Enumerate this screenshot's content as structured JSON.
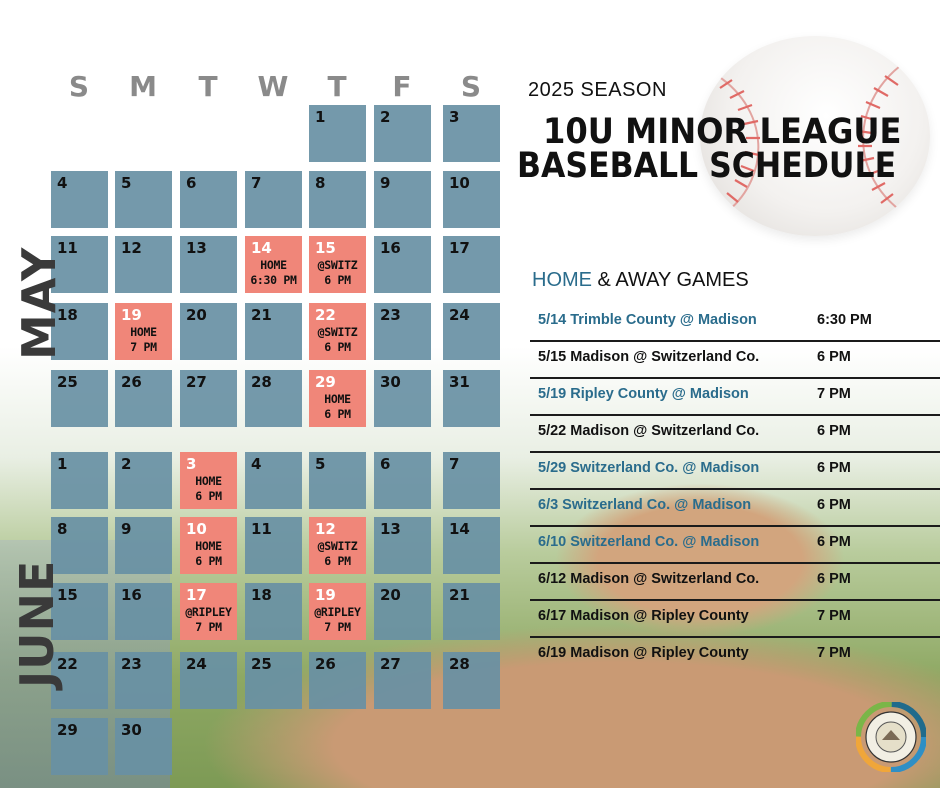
{
  "header": {
    "season": "2025 SEASON",
    "title_line1": "10U MINOR LEAGUE",
    "title_line2": "BASEBALL SCHEDULE"
  },
  "calendar": {
    "days_of_week": [
      "S",
      "M",
      "T",
      "W",
      "T",
      "F",
      "S"
    ],
    "may": {
      "label": "MAY",
      "weeks": [
        [
          null,
          null,
          null,
          null,
          {
            "d": "1"
          },
          {
            "d": "2"
          },
          {
            "d": "3"
          }
        ],
        [
          {
            "d": "4"
          },
          {
            "d": "5"
          },
          {
            "d": "6"
          },
          {
            "d": "7"
          },
          {
            "d": "8"
          },
          {
            "d": "9"
          },
          {
            "d": "10"
          }
        ],
        [
          {
            "d": "11"
          },
          {
            "d": "12"
          },
          {
            "d": "13"
          },
          {
            "d": "14",
            "game": [
              "HOME",
              "6:30 PM"
            ]
          },
          {
            "d": "15",
            "game": [
              "@SWITZ",
              "6 PM"
            ]
          },
          {
            "d": "16"
          },
          {
            "d": "17"
          }
        ],
        [
          {
            "d": "18"
          },
          {
            "d": "19",
            "game": [
              "HOME",
              "7 PM"
            ]
          },
          {
            "d": "20"
          },
          {
            "d": "21"
          },
          {
            "d": "22",
            "game": [
              "@SWITZ",
              "6 PM"
            ]
          },
          {
            "d": "23"
          },
          {
            "d": "24"
          }
        ],
        [
          {
            "d": "25"
          },
          {
            "d": "26"
          },
          {
            "d": "27"
          },
          {
            "d": "28"
          },
          {
            "d": "29",
            "game": [
              "HOME",
              "6 PM"
            ]
          },
          {
            "d": "30"
          },
          {
            "d": "31"
          }
        ]
      ]
    },
    "june": {
      "label": "JUNE",
      "weeks": [
        [
          {
            "d": "1"
          },
          {
            "d": "2"
          },
          {
            "d": "3",
            "game": [
              "HOME",
              "6 PM"
            ]
          },
          {
            "d": "4"
          },
          {
            "d": "5"
          },
          {
            "d": "6"
          },
          {
            "d": "7"
          }
        ],
        [
          {
            "d": "8"
          },
          {
            "d": "9"
          },
          {
            "d": "10",
            "game": [
              "HOME",
              "6 PM"
            ]
          },
          {
            "d": "11"
          },
          {
            "d": "12",
            "game": [
              "@SWITZ",
              "6 PM"
            ]
          },
          {
            "d": "13"
          },
          {
            "d": "14"
          }
        ],
        [
          {
            "d": "15"
          },
          {
            "d": "16"
          },
          {
            "d": "17",
            "game": [
              "@RIPLEY",
              "7 PM"
            ]
          },
          {
            "d": "18"
          },
          {
            "d": "19",
            "game": [
              "@RIPLEY",
              "7 PM"
            ]
          },
          {
            "d": "20"
          },
          {
            "d": "21"
          }
        ],
        [
          {
            "d": "22"
          },
          {
            "d": "23"
          },
          {
            "d": "24"
          },
          {
            "d": "25"
          },
          {
            "d": "26"
          },
          {
            "d": "27"
          },
          {
            "d": "28"
          }
        ],
        [
          {
            "d": "29"
          },
          {
            "d": "30"
          },
          null,
          null,
          null,
          null,
          null
        ]
      ]
    }
  },
  "games": {
    "heading_highlight": "HOME",
    "heading_rest": " & AWAY GAMES",
    "list": [
      {
        "match": "5/14  Trimble County @ Madison",
        "time": "6:30 PM",
        "home": true
      },
      {
        "match": "5/15  Madison @ Switzerland Co.",
        "time": "6 PM",
        "home": false
      },
      {
        "match": "5/19   Ripley County @ Madison",
        "time": "7 PM",
        "home": true
      },
      {
        "match": "5/22   Madison @ Switzerland Co.",
        "time": "6 PM",
        "home": false
      },
      {
        "match": "5/29  Switzerland Co. @ Madison",
        "time": "6 PM",
        "home": true
      },
      {
        "match": "6/3  Switzerland Co. @ Madison",
        "time": "6 PM",
        "home": true
      },
      {
        "match": "6/10  Switzerland Co. @ Madison",
        "time": "6 PM",
        "home": true
      },
      {
        "match": "6/12  Madison @ Switzerland Co.",
        "time": "6 PM",
        "home": false
      },
      {
        "match": "6/17 Madison @ Ripley County",
        "time": "7 PM",
        "home": false
      },
      {
        "match": "6/19 Madison @ Ripley County",
        "time": "7 PM",
        "home": false
      }
    ]
  },
  "colors": {
    "cell": "#6890a4",
    "game_cell": "#f08679",
    "home_text": "#2a6c8c"
  },
  "icons": {
    "baseball": "baseball-image",
    "seal": "city-seal-logo"
  }
}
